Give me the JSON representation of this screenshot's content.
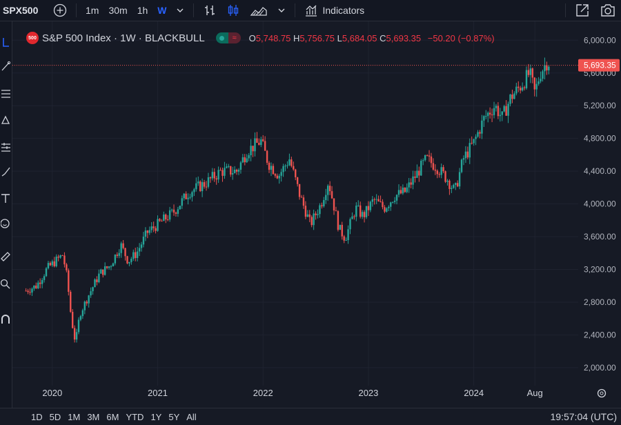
{
  "toolbar": {
    "symbol": "SPX500",
    "intervals": [
      "1m",
      "30m",
      "1h",
      "W"
    ],
    "active_interval": "W",
    "indicators_label": "Indicators"
  },
  "legend": {
    "title": "S&P 500 Index · 1W · BLACKBULL",
    "logo_text": "500",
    "pill_right": "≈",
    "o_label": "O",
    "o": "5,748.75",
    "h_label": "H",
    "h": "5,756.75",
    "l_label": "L",
    "l": "5,684.05",
    "c_label": "C",
    "c": "5,693.35",
    "change": "−50.20 (−0.87%)"
  },
  "price_tag": "5,693.35",
  "bottom": {
    "ranges": [
      "1D",
      "5D",
      "1M",
      "3M",
      "6M",
      "YTD",
      "1Y",
      "5Y",
      "All"
    ],
    "clock": "19:57:04 (UTC)"
  },
  "colors": {
    "up": "#26a69a",
    "down": "#ef5350",
    "bg": "#161a25",
    "accent": "#2962ff"
  },
  "chart_data": {
    "type": "candlestick",
    "timeframe": "1W",
    "y_ticks": [
      "6,000.00",
      "5,600.00",
      "5,200.00",
      "4,800.00",
      "4,400.00",
      "4,000.00",
      "3,600.00",
      "3,200.00",
      "2,800.00",
      "2,400.00",
      "2,000.00"
    ],
    "ylim": [
      1780,
      6230
    ],
    "x_ticks": [
      {
        "label": "2020",
        "t": 2020.0
      },
      {
        "label": "2021",
        "t": 2021.0
      },
      {
        "label": "2022",
        "t": 2022.0
      },
      {
        "label": "2023",
        "t": 2023.0
      },
      {
        "label": "2024",
        "t": 2024.0
      },
      {
        "label": "Aug",
        "t": 2024.58
      }
    ],
    "xlim": [
      2019.7,
      2025.05
    ],
    "last_close": 5693.35,
    "closes": [
      {
        "t": 2019.75,
        "v": 2940
      },
      {
        "t": 2019.85,
        "v": 3000
      },
      {
        "t": 2019.95,
        "v": 3210
      },
      {
        "t": 2020.1,
        "v": 3380
      },
      {
        "t": 2020.14,
        "v": 3100
      },
      {
        "t": 2020.18,
        "v": 2600
      },
      {
        "t": 2020.22,
        "v": 2300
      },
      {
        "t": 2020.26,
        "v": 2650
      },
      {
        "t": 2020.35,
        "v": 2900
      },
      {
        "t": 2020.45,
        "v": 3150
      },
      {
        "t": 2020.55,
        "v": 3250
      },
      {
        "t": 2020.65,
        "v": 3500
      },
      {
        "t": 2020.72,
        "v": 3300
      },
      {
        "t": 2020.8,
        "v": 3400
      },
      {
        "t": 2020.9,
        "v": 3650
      },
      {
        "t": 2021.0,
        "v": 3750
      },
      {
        "t": 2021.15,
        "v": 3900
      },
      {
        "t": 2021.3,
        "v": 4150
      },
      {
        "t": 2021.45,
        "v": 4250
      },
      {
        "t": 2021.6,
        "v": 4400
      },
      {
        "t": 2021.75,
        "v": 4400
      },
      {
        "t": 2021.85,
        "v": 4650
      },
      {
        "t": 2021.98,
        "v": 4770
      },
      {
        "t": 2022.05,
        "v": 4500
      },
      {
        "t": 2022.15,
        "v": 4350
      },
      {
        "t": 2022.25,
        "v": 4550
      },
      {
        "t": 2022.35,
        "v": 4100
      },
      {
        "t": 2022.45,
        "v": 3750
      },
      {
        "t": 2022.55,
        "v": 4000
      },
      {
        "t": 2022.62,
        "v": 4280
      },
      {
        "t": 2022.72,
        "v": 3700
      },
      {
        "t": 2022.78,
        "v": 3580
      },
      {
        "t": 2022.88,
        "v": 3950
      },
      {
        "t": 2022.95,
        "v": 3850
      },
      {
        "t": 2023.05,
        "v": 4050
      },
      {
        "t": 2023.15,
        "v": 3950
      },
      {
        "t": 2023.25,
        "v": 4100
      },
      {
        "t": 2023.35,
        "v": 4150
      },
      {
        "t": 2023.45,
        "v": 4350
      },
      {
        "t": 2023.55,
        "v": 4550
      },
      {
        "t": 2023.65,
        "v": 4450
      },
      {
        "t": 2023.75,
        "v": 4300
      },
      {
        "t": 2023.82,
        "v": 4150
      },
      {
        "t": 2023.9,
        "v": 4550
      },
      {
        "t": 2024.0,
        "v": 4750
      },
      {
        "t": 2024.1,
        "v": 5050
      },
      {
        "t": 2024.2,
        "v": 5200
      },
      {
        "t": 2024.27,
        "v": 5050
      },
      {
        "t": 2024.35,
        "v": 5300
      },
      {
        "t": 2024.45,
        "v": 5450
      },
      {
        "t": 2024.53,
        "v": 5600
      },
      {
        "t": 2024.58,
        "v": 5350
      },
      {
        "t": 2024.63,
        "v": 5600
      },
      {
        "t": 2024.7,
        "v": 5750
      },
      {
        "t": 2024.73,
        "v": 5693
      }
    ]
  }
}
